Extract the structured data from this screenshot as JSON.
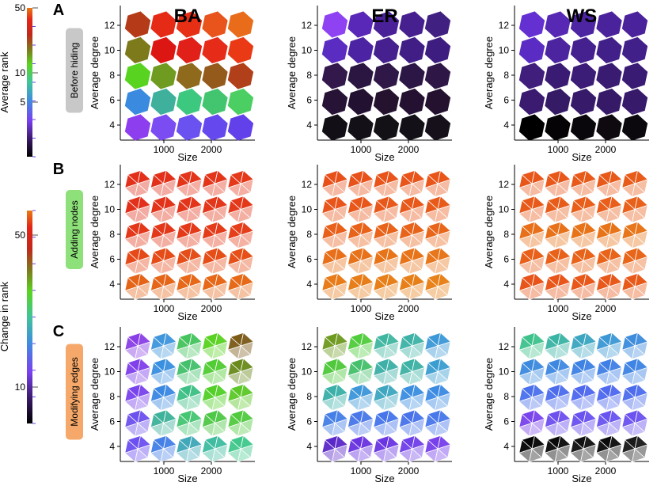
{
  "column_titles": [
    "BA",
    "ER",
    "WS"
  ],
  "rows": [
    {
      "letter": "A",
      "label": "Before hiding",
      "color": "#c8c8c8"
    },
    {
      "letter": "B",
      "label": "Adding nodes",
      "color": "#8ee07a"
    },
    {
      "letter": "C",
      "label": "Modifying edges",
      "color": "#f5a86a"
    }
  ],
  "colorbars": [
    {
      "label": "Average rank",
      "ticks": [
        "50",
        "10",
        "5"
      ],
      "scale": "log"
    },
    {
      "label": "Change in rank",
      "ticks": [
        "50",
        "10"
      ],
      "scale": "log"
    }
  ],
  "chart_data": [
    {
      "type": "heatmap",
      "panel": "A",
      "xlabel": "Size",
      "ylabel": "Average degree",
      "x_ticks": [
        "1000",
        "2000"
      ],
      "y_ticks": [
        "4",
        "6",
        "8",
        "10",
        "12"
      ],
      "series": [
        {
          "name": "BA",
          "matrix": [
            [
              "#b53a18",
              "#e52a16",
              "#e62f14",
              "#e8541c",
              "#e86c1a"
            ],
            [
              "#7d7a1c",
              "#dc1613",
              "#e2201a",
              "#e62b18",
              "#e93a15"
            ],
            [
              "#58d320",
              "#6e9b20",
              "#8f6a1c",
              "#945a1c",
              "#b03f1a"
            ],
            [
              "#3a8be0",
              "#3eb09c",
              "#3dc880",
              "#43c46e",
              "#4ccf62"
            ],
            [
              "#8d3ff0",
              "#7c4cf3",
              "#6a52f0",
              "#6548ee",
              "#6240ea"
            ]
          ]
        },
        {
          "name": "ER",
          "matrix": [
            [
              "#8f42f2",
              "#5a28b8",
              "#4a2099",
              "#45208e",
              "#402080"
            ],
            [
              "#5b2cc2",
              "#4c23a2",
              "#45208e",
              "#401e86",
              "#3e1d80"
            ],
            [
              "#33184c",
              "#2b1541",
              "#2f1748",
              "#2c1645",
              "#2e1747"
            ],
            [
              "#271336",
              "#231131",
              "#25122f",
              "#241131",
              "#23112f"
            ],
            [
              "#121016",
              "#141018",
              "#131016",
              "#141018",
              "#15101a"
            ]
          ]
        },
        {
          "name": "WS",
          "matrix": [
            [
              "#6430d2",
              "#5628b4",
              "#4d24a2",
              "#4a229b",
              "#4a229b"
            ],
            [
              "#5b2cc4",
              "#4c24a0",
              "#45208f",
              "#42208a",
              "#41208a"
            ],
            [
              "#3f1e7c",
              "#3a1b73",
              "#3b1c76",
              "#391b72",
              "#3a1b74"
            ],
            [
              "#3a1b70",
              "#351a66",
              "#371a6a",
              "#361a68",
              "#371a6a"
            ],
            [
              "#000000",
              "#050305",
              "#0a070c",
              "#0e0a10",
              "#0c090e"
            ]
          ]
        }
      ]
    },
    {
      "type": "heatmap",
      "panel": "B",
      "xlabel": "Size",
      "ylabel": "Average degree",
      "x_ticks": [
        "1000",
        "2000"
      ],
      "y_ticks": [
        "4",
        "6",
        "8",
        "10",
        "12"
      ],
      "series": [
        {
          "name": "BA",
          "matrix": [
            [
              "#e2301a",
              "#e2301a",
              "#e3351a",
              "#e3351a",
              "#e53a1a"
            ],
            [
              "#e2301a",
              "#e2321a",
              "#e3351a",
              "#e3361a",
              "#e4381a"
            ],
            [
              "#e3381a",
              "#e3381a",
              "#e43a1a",
              "#e43c1a",
              "#e53e1a"
            ],
            [
              "#e54a18",
              "#e54c18",
              "#e54e18",
              "#e64e18",
              "#e65018"
            ],
            [
              "#e46418",
              "#e56618",
              "#e66818",
              "#e66818",
              "#e76a18"
            ]
          ]
        },
        {
          "name": "ER",
          "matrix": [
            [
              "#e8501a",
              "#e8521a",
              "#e8541a",
              "#e8541a",
              "#e8561a"
            ],
            [
              "#e8541a",
              "#e8561a",
              "#e8581a",
              "#e8581a",
              "#e85a1a"
            ],
            [
              "#e8601a",
              "#e8621a",
              "#e8641a",
              "#e8641a",
              "#e8661a"
            ],
            [
              "#e8701a",
              "#e8721a",
              "#e8741a",
              "#e8741a",
              "#e8761a"
            ],
            [
              "#e87c1a",
              "#e87e1a",
              "#e8801a",
              "#e8801a",
              "#e8821a"
            ]
          ]
        },
        {
          "name": "WS",
          "matrix": [
            [
              "#e8561a",
              "#e8581a",
              "#e85a1a",
              "#e85a1a",
              "#e85c1a"
            ],
            [
              "#e85a1a",
              "#e85c1a",
              "#e85e1a",
              "#e85e1a",
              "#e8601a"
            ],
            [
              "#e8701a",
              "#e8721a",
              "#e8741a",
              "#e8741a",
              "#e8761a"
            ],
            [
              "#e8601a",
              "#e8621a",
              "#e8641a",
              "#e8641a",
              "#e8661a"
            ],
            [
              "#e8541a",
              "#e8561a",
              "#e8581a",
              "#e8581a",
              "#e85a1a"
            ]
          ]
        }
      ]
    },
    {
      "type": "heatmap",
      "panel": "C",
      "xlabel": "Size",
      "ylabel": "Average degree",
      "x_ticks": [
        "1000",
        "2000"
      ],
      "y_ticks": [
        "4",
        "6",
        "8",
        "10",
        "12"
      ],
      "series": [
        {
          "name": "BA",
          "matrix": [
            [
              "#8a3fe6",
              "#3f96dc",
              "#45c45e",
              "#5ad222",
              "#7c5a18"
            ],
            [
              "#8040ea",
              "#3a90e0",
              "#45c06c",
              "#52cc34",
              "#6a8a1c"
            ],
            [
              "#7a44ec",
              "#3a88e2",
              "#3cbf84",
              "#52d028",
              "#5cc828"
            ],
            [
              "#6e52ee",
              "#3eb29a",
              "#46c672",
              "#4fc848",
              "#52ca40"
            ],
            [
              "#6d50f0",
              "#4480e6",
              "#40a8b8",
              "#3fbca0",
              "#40c88c"
            ]
          ]
        },
        {
          "name": "ER",
          "matrix": [
            [
              "#6e9a20",
              "#50cc3c",
              "#3fb6a0",
              "#3eb2a6",
              "#3c98d6"
            ],
            [
              "#50c83c",
              "#46c06c",
              "#3eb0a8",
              "#3eb2a4",
              "#3c9ed0"
            ],
            [
              "#3ab0a8",
              "#3c96d8",
              "#3ea6c0",
              "#3c8ee0",
              "#3c8ae2"
            ],
            [
              "#4680e6",
              "#4a78e8",
              "#4676ea",
              "#4872ea",
              "#4878ea"
            ],
            [
              "#5a28c8",
              "#6a34e0",
              "#6a36e2",
              "#7040e8",
              "#7840ea"
            ]
          ]
        },
        {
          "name": "WS",
          "matrix": [
            [
              "#3ec28c",
              "#3ab4a4",
              "#3ca6c0",
              "#3c98d4",
              "#3e8cdc"
            ],
            [
              "#3c8ade",
              "#3e88e2",
              "#3e82e4",
              "#4080e6",
              "#3e84e4"
            ],
            [
              "#4a70ec",
              "#4c6cec",
              "#4e68ee",
              "#4e68ee",
              "#4c6cec"
            ],
            [
              "#7a44ec",
              "#6e50ee",
              "#6a52f0",
              "#6a54f0",
              "#6c52ee"
            ],
            [
              "#050505",
              "#0a0a0a",
              "#111111",
              "#0c0c0c",
              "#1a1a1a"
            ]
          ]
        }
      ]
    }
  ]
}
